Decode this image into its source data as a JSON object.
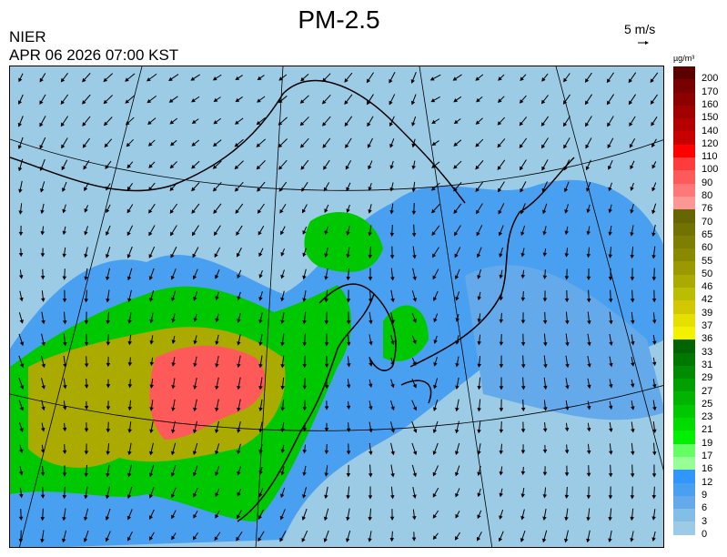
{
  "header": {
    "title": "PM-2.5",
    "organization": "NIER",
    "timestamp": "APR 06 2026 07:00 KST"
  },
  "wind_scale": {
    "label": "5 m/s",
    "icon": "arrow-right-icon"
  },
  "legend": {
    "unit": "µg/m³",
    "labels": [
      "200",
      "170",
      "160",
      "150",
      "140",
      "120",
      "110",
      "100",
      "90",
      "80",
      "76",
      "70",
      "65",
      "60",
      "55",
      "50",
      "46",
      "42",
      "39",
      "37",
      "36",
      "33",
      "31",
      "29",
      "27",
      "25",
      "23",
      "21",
      "19",
      "17",
      "16",
      "12",
      "9",
      "6",
      "3",
      "0"
    ],
    "colors": [
      "#5a0000",
      "#780000",
      "#8c0000",
      "#a00000",
      "#b40000",
      "#c80000",
      "#dc0000",
      "#ff0000",
      "#ff3c3c",
      "#ff5a5a",
      "#ff7878",
      "#ff9696",
      "#5a5a00",
      "#666600",
      "#727200",
      "#7e7e00",
      "#8a8a00",
      "#9a9a00",
      "#aaaa00",
      "#bcbc00",
      "#d2c800",
      "#e6e000",
      "#f5f000",
      "#006400",
      "#007800",
      "#008c00",
      "#00a000",
      "#00b400",
      "#00c800",
      "#00dc00",
      "#00f000",
      "#64ff64",
      "#96ff96",
      "#3296ff",
      "#4aa0f0",
      "#64aaeb",
      "#82bee6",
      "#9ccbe6"
    ]
  },
  "map": {
    "background_color": "#9ccbe6",
    "coastline_color": "#000000"
  }
}
